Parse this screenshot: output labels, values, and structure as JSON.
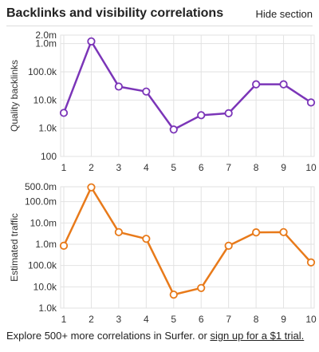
{
  "header": {
    "title": "Backlinks and visibility correlations",
    "hide_label": "Hide section"
  },
  "footer": {
    "text": "Explore 500+ more correlations in Surfer. or ",
    "link": "sign up for a $1 trial."
  },
  "chart_data": [
    {
      "type": "line",
      "ylabel": "Quality backlinks",
      "xlabel": "",
      "yscale": "log",
      "x": [
        1,
        2,
        3,
        4,
        5,
        6,
        7,
        8,
        9,
        10
      ],
      "y_ticks": [
        {
          "value": 100,
          "label": "100"
        },
        {
          "value": 1000,
          "label": "1.0k"
        },
        {
          "value": 10000,
          "label": "10.0k"
        },
        {
          "value": 100000,
          "label": "100.0k"
        },
        {
          "value": 1000000,
          "label": "1.0m"
        },
        {
          "value": 2000000,
          "label": "2.0m"
        }
      ],
      "ylim": [
        100,
        2000000
      ],
      "grid": true,
      "color": "#7b35b8",
      "series": [
        {
          "values": [
            3500,
            1200000,
            30000,
            20000,
            900,
            2900,
            3400,
            36000,
            36000,
            8200
          ]
        }
      ]
    },
    {
      "type": "line",
      "ylabel": "Estimated traffic",
      "xlabel": "Position",
      "yscale": "log",
      "x": [
        1,
        2,
        3,
        4,
        5,
        6,
        7,
        8,
        9,
        10
      ],
      "y_ticks": [
        {
          "value": 1000,
          "label": "1.0k"
        },
        {
          "value": 10000,
          "label": "10.0k"
        },
        {
          "value": 100000,
          "label": "100.0k"
        },
        {
          "value": 1000000,
          "label": "1.0m"
        },
        {
          "value": 10000000,
          "label": "10.0m"
        },
        {
          "value": 100000000,
          "label": "100.0m"
        },
        {
          "value": 500000000,
          "label": "500.0m"
        }
      ],
      "ylim": [
        1000,
        500000000
      ],
      "grid": true,
      "color": "#e87a1a",
      "series": [
        {
          "values": [
            850000,
            470000000,
            3700000,
            1800000,
            4300,
            8800,
            850000,
            3600000,
            3700000,
            140000
          ]
        }
      ]
    }
  ]
}
